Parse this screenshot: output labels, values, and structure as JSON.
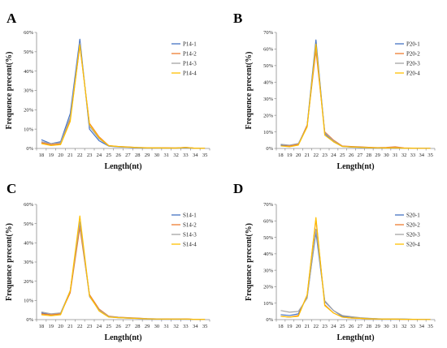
{
  "figure": {
    "panels": [
      "A",
      "B",
      "C",
      "D"
    ]
  },
  "chart_data": [
    {
      "panel": "A",
      "type": "line",
      "xlabel": "Length(nt)",
      "ylabel": "Frequence precent(%)",
      "ylim": [
        0,
        60
      ],
      "yticks": [
        "0%",
        "10%",
        "20%",
        "30%",
        "40%",
        "50%",
        "60%"
      ],
      "x": [
        18,
        19,
        20,
        21,
        22,
        23,
        24,
        25,
        26,
        27,
        28,
        29,
        30,
        31,
        32,
        33,
        34,
        35
      ],
      "grid": false,
      "legend": "top-right",
      "series": [
        {
          "name": "P14-1",
          "color": "#4472C4",
          "values": [
            4.5,
            2.5,
            3.5,
            18,
            56.5,
            10,
            4,
            1.2,
            0.8,
            0.6,
            0.4,
            0.3,
            0.3,
            0.2,
            0.2,
            0.4,
            0.1,
            0.1
          ]
        },
        {
          "name": "P14-2",
          "color": "#ED7D31",
          "values": [
            3,
            2,
            2.5,
            15,
            53,
            13,
            6,
            1.5,
            1,
            0.8,
            0.5,
            0.4,
            0.3,
            0.3,
            0.2,
            0.6,
            0.1,
            0.1
          ]
        },
        {
          "name": "P14-3",
          "color": "#A5A5A5",
          "values": [
            3.5,
            2.5,
            3,
            16,
            54.5,
            11.5,
            5,
            1.3,
            0.9,
            0.7,
            0.5,
            0.3,
            0.3,
            0.2,
            0.2,
            0.5,
            0.1,
            0.1
          ]
        },
        {
          "name": "P14-4",
          "color": "#FFC000",
          "values": [
            2.5,
            1.5,
            2,
            14,
            53.5,
            12.5,
            5.5,
            1.4,
            1,
            0.7,
            0.5,
            0.3,
            0.3,
            0.2,
            0.2,
            0.5,
            0.1,
            0.1
          ]
        }
      ]
    },
    {
      "panel": "B",
      "type": "line",
      "xlabel": "Length(nt)",
      "ylabel": "Frequence precent(%)",
      "ylim": [
        0,
        70
      ],
      "yticks": [
        "0%",
        "10%",
        "20%",
        "30%",
        "40%",
        "50%",
        "60%",
        "70%"
      ],
      "x": [
        18,
        19,
        20,
        21,
        22,
        23,
        24,
        25,
        26,
        27,
        28,
        29,
        30,
        31,
        32,
        33,
        34,
        35
      ],
      "grid": false,
      "legend": "top-right",
      "series": [
        {
          "name": "P20-1",
          "color": "#4472C4",
          "values": [
            2,
            1.5,
            2.5,
            14,
            65.5,
            9,
            4,
            1.2,
            0.8,
            0.6,
            0.4,
            0.3,
            0.3,
            0.2,
            0.2,
            0.2,
            0.1,
            0.1
          ]
        },
        {
          "name": "P20-2",
          "color": "#ED7D31",
          "values": [
            1.5,
            1.5,
            2.5,
            14,
            59,
            10,
            5,
            1.5,
            1.2,
            1,
            0.7,
            0.5,
            0.6,
            1,
            0.3,
            0.2,
            0.1,
            0.1
          ]
        },
        {
          "name": "P20-3",
          "color": "#A5A5A5",
          "values": [
            2.5,
            2,
            3,
            13,
            62,
            9.5,
            4.5,
            1.3,
            1,
            0.8,
            0.5,
            0.4,
            0.4,
            0.5,
            0.2,
            0.2,
            0.1,
            0.1
          ]
        },
        {
          "name": "P20-4",
          "color": "#FFC000",
          "values": [
            1.5,
            1,
            2,
            13,
            63,
            8,
            4,
            1.2,
            0.9,
            0.7,
            0.5,
            0.4,
            0.3,
            0.3,
            0.2,
            0.2,
            0.1,
            0.1
          ]
        }
      ]
    },
    {
      "panel": "C",
      "type": "line",
      "xlabel": "Length(nt)",
      "ylabel": "Frequence precent(%)",
      "ylim": [
        0,
        60
      ],
      "yticks": [
        "0%",
        "10%",
        "20%",
        "30%",
        "40%",
        "50%",
        "60%"
      ],
      "x": [
        18,
        19,
        20,
        21,
        22,
        23,
        24,
        25,
        26,
        27,
        28,
        29,
        30,
        31,
        32,
        33,
        34,
        35
      ],
      "grid": false,
      "legend": "top-right",
      "series": [
        {
          "name": "S14-1",
          "color": "#4472C4",
          "values": [
            3.5,
            2.5,
            3,
            15,
            50,
            13,
            5,
            1.5,
            1,
            0.8,
            0.6,
            0.4,
            0.3,
            0.3,
            0.3,
            0.3,
            0.1,
            0.1
          ]
        },
        {
          "name": "S14-2",
          "color": "#ED7D31",
          "values": [
            3,
            2.5,
            3,
            14,
            48,
            13,
            5.5,
            1.8,
            1.3,
            1,
            0.8,
            0.5,
            0.4,
            0.4,
            0.3,
            0.4,
            0.1,
            0.1
          ]
        },
        {
          "name": "S14-3",
          "color": "#A5A5A5",
          "values": [
            4,
            3,
            3.5,
            15,
            51,
            12,
            5,
            1.6,
            1.2,
            0.9,
            0.7,
            0.5,
            0.4,
            0.3,
            0.3,
            0.3,
            0.1,
            0.1
          ]
        },
        {
          "name": "S14-4",
          "color": "#FFC000",
          "values": [
            2.5,
            2,
            2.5,
            15,
            54,
            12.5,
            4.5,
            1.3,
            1,
            0.8,
            0.6,
            0.4,
            0.3,
            0.3,
            0.3,
            0.3,
            0.1,
            0.1
          ]
        }
      ]
    },
    {
      "panel": "D",
      "type": "line",
      "xlabel": "Length(nt)",
      "ylabel": "Frequence precent(%)",
      "ylim": [
        0,
        70
      ],
      "yticks": [
        "0%",
        "10%",
        "20%",
        "30%",
        "40%",
        "50%",
        "60%",
        "70%"
      ],
      "x": [
        18,
        19,
        20,
        21,
        22,
        23,
        24,
        25,
        26,
        27,
        28,
        29,
        30,
        31,
        32,
        33,
        34,
        35
      ],
      "grid": false,
      "legend": "top-right",
      "series": [
        {
          "name": "S20-1",
          "color": "#4472C4",
          "values": [
            3,
            2.5,
            3.5,
            14,
            53,
            11,
            5.5,
            2,
            1.5,
            1,
            0.7,
            0.5,
            0.4,
            0.3,
            0.3,
            0.2,
            0.1,
            0.1
          ]
        },
        {
          "name": "S20-2",
          "color": "#ED7D31",
          "values": [
            2,
            1.5,
            2.5,
            15,
            61,
            9,
            4,
            1.5,
            1,
            0.8,
            0.5,
            0.4,
            0.3,
            0.3,
            0.2,
            0.2,
            0.1,
            0.1
          ]
        },
        {
          "name": "S20-3",
          "color": "#A5A5A5",
          "values": [
            5.5,
            4.5,
            5,
            13,
            55,
            11.5,
            5.5,
            2.5,
            1.8,
            1.2,
            0.8,
            0.5,
            0.4,
            0.3,
            0.3,
            0.2,
            0.1,
            0.1
          ]
        },
        {
          "name": "S20-4",
          "color": "#FFC000",
          "values": [
            2,
            1.5,
            2,
            15,
            62,
            8.5,
            4,
            1.5,
            1,
            0.8,
            0.5,
            0.4,
            0.3,
            0.3,
            0.2,
            0.2,
            0.1,
            0.1
          ]
        }
      ]
    }
  ]
}
